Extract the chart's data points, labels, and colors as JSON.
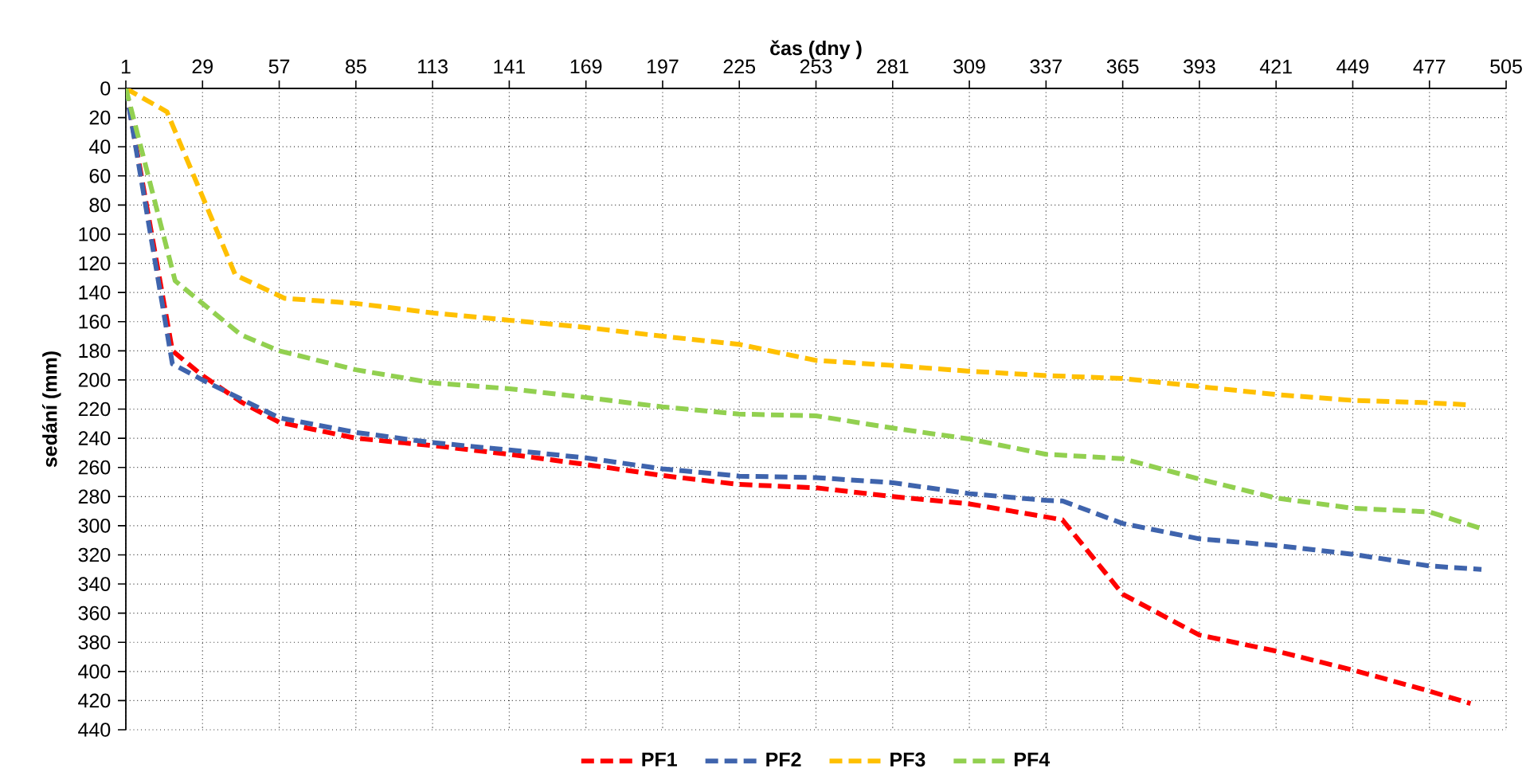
{
  "chart_data": {
    "type": "line",
    "xlabel": "čas (dny )",
    "ylabel": "sedání (mm)",
    "xlim": [
      1,
      505
    ],
    "xticks": [
      1,
      29,
      57,
      85,
      113,
      141,
      169,
      197,
      225,
      253,
      281,
      309,
      337,
      365,
      393,
      421,
      449,
      477,
      505
    ],
    "ylim": [
      440,
      0
    ],
    "yticks": [
      0,
      20,
      40,
      60,
      80,
      100,
      120,
      140,
      160,
      180,
      200,
      220,
      240,
      260,
      280,
      300,
      320,
      340,
      360,
      380,
      400,
      420,
      440
    ],
    "grid": true,
    "legend": "bottom",
    "marker": "none",
    "line_style": "dashed",
    "series": [
      {
        "name": "PF1",
        "color": "#ff0000",
        "x": [
          1,
          18,
          29,
          43,
          57,
          85,
          113,
          141,
          169,
          197,
          225,
          253,
          281,
          309,
          337,
          343,
          365,
          393,
          421,
          449,
          477,
          492
        ],
        "values": [
          0,
          180,
          197,
          215,
          229,
          240,
          245,
          251,
          258,
          265.6,
          271.7,
          274,
          280,
          285,
          294,
          296,
          347,
          375,
          386,
          399,
          413.5,
          422
        ]
      },
      {
        "name": "PF2",
        "color": "#3f64ad",
        "x": [
          1,
          18,
          29,
          43,
          57,
          85,
          113,
          141,
          169,
          197,
          225,
          253,
          281,
          309,
          337,
          343,
          365,
          393,
          421,
          449,
          477,
          496
        ],
        "values": [
          0,
          189,
          200,
          213,
          226,
          236,
          243,
          248,
          253.5,
          261,
          266,
          267,
          270.5,
          278,
          282.6,
          283,
          298.5,
          309,
          313.5,
          319.6,
          327.6,
          330
        ]
      },
      {
        "name": "PF3",
        "color": "#ffc000",
        "x": [
          1,
          16,
          41,
          59,
          85,
          113,
          141,
          169,
          197,
          225,
          253,
          281,
          309,
          337,
          365,
          393,
          421,
          449,
          477,
          491
        ],
        "values": [
          0,
          16,
          128,
          144,
          147.5,
          154,
          159,
          164,
          170,
          175.6,
          186.6,
          190,
          194,
          197,
          199,
          204.5,
          210,
          214,
          215.7,
          217
        ]
      },
      {
        "name": "PF4",
        "color": "#92d050",
        "x": [
          1,
          19,
          29,
          43,
          57,
          85,
          113,
          141,
          169,
          197,
          225,
          253,
          281,
          309,
          337,
          365,
          393,
          421,
          449,
          477,
          496
        ],
        "values": [
          0,
          132,
          147.5,
          169,
          180,
          193,
          202,
          206,
          212,
          218.5,
          223.4,
          224.6,
          233,
          240.5,
          251,
          254,
          268,
          281,
          288,
          290.5,
          302
        ]
      }
    ]
  }
}
